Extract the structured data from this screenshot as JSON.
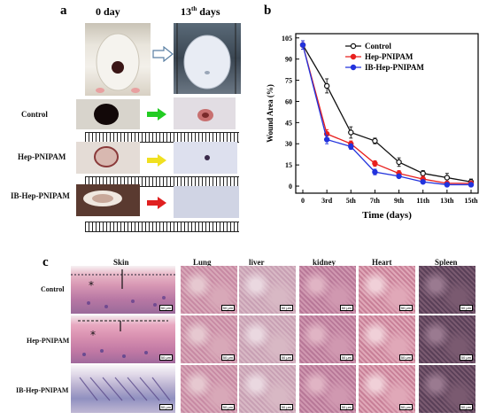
{
  "panel_a": {
    "label": "a",
    "col_day0": "0 day",
    "col_day13_num": "13",
    "col_day13_sup": "th",
    "col_day13_rest": " days",
    "rows": [
      "Control",
      "Hep-PNIPAM",
      "IB-Hep-PNIPAM"
    ],
    "arrow_colors": [
      "#22cc22",
      "#f0e020",
      "#e02020"
    ]
  },
  "panel_b": {
    "label": "b"
  },
  "panel_c": {
    "label": "c",
    "columns": [
      "Skin",
      "Lung",
      "liver",
      "kidney",
      "Heart",
      "Spleen"
    ],
    "rows": [
      "Control",
      "Hep-PNIPAM",
      "IB-Hep-PNIPAM"
    ],
    "scale": "50 μm"
  },
  "chart_data": {
    "type": "line",
    "xlabel": "Time (days)",
    "ylabel": "Wound Area (%)",
    "categories": [
      "0",
      "3rd",
      "5th",
      "7th",
      "9th",
      "11th",
      "13th",
      "15th"
    ],
    "yticks": [
      0,
      15,
      30,
      45,
      60,
      75,
      90,
      105
    ],
    "ylim": [
      -5,
      108
    ],
    "legend_position": "top-right",
    "series": [
      {
        "name": "Control",
        "color": "#111111",
        "marker": "open-circle",
        "values": [
          100,
          71,
          38,
          32,
          17,
          9,
          6,
          3
        ],
        "errors": [
          3,
          5,
          4,
          2,
          3,
          2,
          3,
          2
        ]
      },
      {
        "name": "Hep-PNIPAM",
        "color": "#e8201e",
        "marker": "filled-circle",
        "values": [
          100,
          37,
          30,
          16,
          9,
          5,
          2,
          2
        ],
        "errors": [
          3,
          3,
          2,
          2,
          2,
          2,
          1,
          1
        ]
      },
      {
        "name": "IB-Hep-PNIPAM",
        "color": "#2233dd",
        "marker": "filled-circle",
        "values": [
          100,
          33,
          28,
          10,
          7,
          3,
          1,
          1
        ],
        "errors": [
          3,
          3,
          2,
          2,
          1,
          1,
          1,
          1
        ]
      }
    ]
  }
}
